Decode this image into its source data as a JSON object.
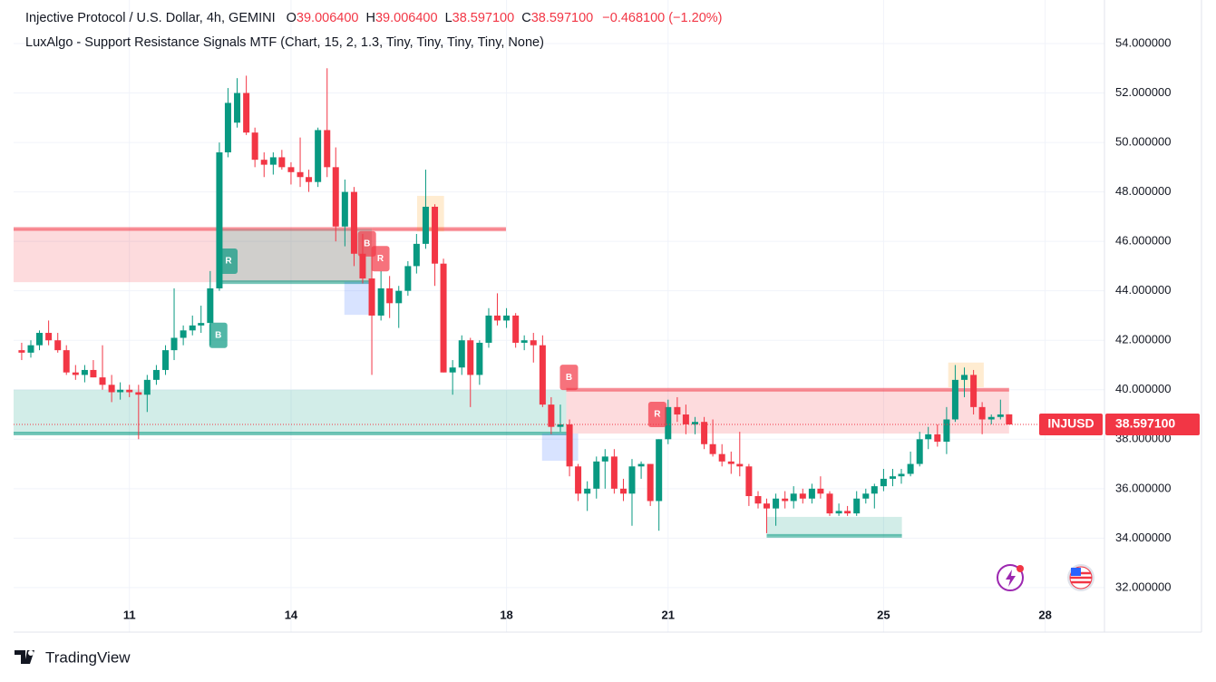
{
  "chart_data": {
    "type": "candlestick",
    "title": "Injective Protocol / U.S. Dollar, 4h, GEMINI",
    "ohlc_legend": [
      {
        "label": "O",
        "value": "39.006400"
      },
      {
        "label": "H",
        "value": "39.006400"
      },
      {
        "label": "L",
        "value": "38.597100"
      },
      {
        "label": "C",
        "value": "38.597100"
      }
    ],
    "change": "−0.468100 (−1.20%)",
    "indicator": "LuxAlgo - Support Resistance Signals MTF (Chart, 15, 2, 1.3, Tiny, Tiny, Tiny, Tiny, None)",
    "symbol": "INJUSD",
    "last_price": {
      "value": 38.5971,
      "label": "38.597100"
    },
    "up_color": "#089981",
    "down_color": "#f23645",
    "grid": true,
    "xlim": [
      8.85,
      29.05
    ],
    "xticks": [
      11,
      14,
      18,
      21,
      25,
      28
    ],
    "ylim": [
      30.2,
      55.76
    ],
    "yticks": [
      {
        "value": 32,
        "label": "32.000000"
      },
      {
        "value": 34,
        "label": "34.000000"
      },
      {
        "value": 36,
        "label": "36.000000"
      },
      {
        "value": 38,
        "label": "38.000000"
      },
      {
        "value": 40,
        "label": "40.000000"
      },
      {
        "value": 42,
        "label": "42.000000"
      },
      {
        "value": 44,
        "label": "44.000000"
      },
      {
        "value": 46,
        "label": "46.000000"
      },
      {
        "value": 48,
        "label": "48.000000"
      },
      {
        "value": 50,
        "label": "50.000000"
      },
      {
        "value": 52,
        "label": "52.000000"
      },
      {
        "value": 54,
        "label": "54.000000"
      }
    ],
    "x": [
      9,
      9.17,
      9.33,
      9.5,
      9.67,
      9.83,
      10,
      10.17,
      10.33,
      10.5,
      10.67,
      10.83,
      11,
      11.17,
      11.33,
      11.5,
      11.67,
      11.83,
      12,
      12.17,
      12.33,
      12.5,
      12.67,
      12.83,
      13,
      13.17,
      13.33,
      13.5,
      13.67,
      13.83,
      14,
      14.17,
      14.33,
      14.5,
      14.67,
      14.83,
      15,
      15.17,
      15.33,
      15.5,
      15.67,
      15.83,
      16,
      16.17,
      16.33,
      16.5,
      16.67,
      16.83,
      17,
      17.17,
      17.33,
      17.5,
      17.67,
      17.83,
      18,
      18.17,
      18.33,
      18.5,
      18.67,
      18.83,
      19,
      19.17,
      19.33,
      19.5,
      19.67,
      19.83,
      20,
      20.17,
      20.33,
      20.5,
      20.67,
      20.83,
      21,
      21.17,
      21.33,
      21.5,
      21.67,
      21.83,
      22,
      22.17,
      22.33,
      22.5,
      22.67,
      22.83,
      23,
      23.17,
      23.33,
      23.5,
      23.67,
      23.83,
      24,
      24.17,
      24.33,
      24.5,
      24.67,
      24.83,
      25,
      25.17,
      25.33,
      25.5,
      25.67,
      25.83,
      26,
      26.17,
      26.33,
      26.5,
      26.67,
      26.83,
      27,
      27.17,
      27.33
    ],
    "open": [
      41.6,
      41.5,
      41.8,
      42.3,
      42.0,
      41.6,
      40.7,
      40.6,
      40.8,
      40.5,
      40.2,
      39.9,
      40.0,
      39.9,
      39.8,
      40.4,
      40.8,
      41.6,
      42.1,
      42.4,
      42.6,
      42.7,
      44.1,
      49.6,
      50.8,
      52.0,
      50.4,
      49.3,
      49.1,
      49.4,
      49.0,
      48.8,
      48.6,
      48.4,
      50.5,
      49.0,
      46.6,
      48.0,
      45.5,
      44.5,
      43.0,
      44.1,
      43.5,
      44.0,
      45.0,
      45.9,
      47.4,
      45.1,
      40.7,
      40.9,
      42.0,
      40.6,
      41.9,
      43.0,
      42.8,
      43.0,
      41.9,
      42.0,
      41.8,
      39.4,
      38.5,
      38.6,
      36.9,
      35.8,
      36.0,
      37.1,
      37.3,
      36.0,
      35.8,
      36.9,
      37.0,
      35.5,
      38.0,
      39.3,
      39.0,
      38.6,
      38.7,
      37.8,
      37.4,
      37.1,
      37.0,
      36.9,
      35.7,
      35.4,
      35.2,
      35.6,
      35.5,
      35.8,
      35.6,
      36.0,
      35.8,
      35.0,
      35.1,
      35.0,
      35.6,
      35.8,
      36.1,
      36.4,
      36.5,
      36.6,
      37.0,
      38.0,
      38.2,
      37.9,
      38.8,
      40.4,
      40.6,
      39.3,
      38.8,
      38.9,
      39.0064
    ],
    "high": [
      41.9,
      42.0,
      42.4,
      42.8,
      42.3,
      41.8,
      41.0,
      41.0,
      41.2,
      41.8,
      40.6,
      40.3,
      40.2,
      40.2,
      40.6,
      41.0,
      41.8,
      44.1,
      42.6,
      43.0,
      43.4,
      44.8,
      50.0,
      52.2,
      52.6,
      52.7,
      50.6,
      49.6,
      49.6,
      49.7,
      49.2,
      50.2,
      48.9,
      50.6,
      53.0,
      49.8,
      48.5,
      48.2,
      46.3,
      45.4,
      44.8,
      44.6,
      44.2,
      45.2,
      46.3,
      48.9,
      47.5,
      45.3,
      41.2,
      42.2,
      42.1,
      42.0,
      43.3,
      43.9,
      43.3,
      43.1,
      42.2,
      42.3,
      42.2,
      39.7,
      39.4,
      38.8,
      37.0,
      36.3,
      37.3,
      37.6,
      37.6,
      36.4,
      37.2,
      37.1,
      37.0,
      38.0,
      39.6,
      39.7,
      39.4,
      38.9,
      38.9,
      38.8,
      37.8,
      37.5,
      38.3,
      37.0,
      35.9,
      35.6,
      35.8,
      35.9,
      36.1,
      36.0,
      36.2,
      36.5,
      35.9,
      35.4,
      35.3,
      35.9,
      36.0,
      36.2,
      36.8,
      36.8,
      36.8,
      37.5,
      38.3,
      38.5,
      38.6,
      39.3,
      41.0,
      40.9,
      40.8,
      39.5,
      39.0,
      39.6,
      39.0064
    ],
    "low": [
      41.2,
      41.3,
      41.6,
      41.8,
      41.5,
      40.6,
      40.4,
      40.3,
      40.5,
      40.0,
      39.5,
      39.6,
      39.7,
      38.0,
      39.1,
      40.2,
      40.6,
      41.2,
      41.8,
      42.2,
      42.3,
      41.8,
      44.0,
      49.4,
      50.6,
      50.3,
      49.0,
      48.6,
      48.7,
      48.9,
      48.3,
      48.2,
      48.0,
      48.2,
      48.6,
      46.0,
      45.8,
      45.0,
      44.3,
      40.6,
      42.8,
      42.9,
      42.5,
      43.8,
      44.7,
      45.7,
      44.2,
      40.7,
      39.8,
      40.6,
      39.3,
      40.2,
      41.7,
      42.6,
      42.5,
      41.7,
      41.6,
      41.1,
      39.3,
      38.2,
      38.3,
      36.5,
      35.5,
      35.1,
      35.6,
      36.0,
      35.8,
      35.5,
      34.5,
      36.4,
      35.3,
      34.3,
      37.8,
      38.7,
      38.2,
      38.2,
      37.6,
      37.3,
      36.9,
      36.6,
      36.5,
      35.3,
      35.2,
      34.2,
      34.5,
      35.2,
      35.2,
      35.4,
      35.4,
      35.6,
      34.9,
      34.9,
      34.9,
      34.9,
      35.4,
      35.2,
      35.9,
      36.1,
      36.2,
      36.5,
      36.9,
      37.6,
      37.7,
      37.4,
      38.7,
      39.7,
      39.0,
      38.2,
      38.6,
      38.8,
      38.5971
    ],
    "close": [
      41.5,
      41.8,
      42.3,
      42.0,
      41.6,
      40.7,
      40.6,
      40.8,
      40.5,
      40.2,
      39.9,
      40.0,
      39.9,
      39.8,
      40.4,
      40.8,
      41.6,
      42.1,
      42.4,
      42.6,
      42.7,
      44.1,
      49.6,
      51.6,
      52.0,
      50.4,
      49.3,
      49.1,
      49.4,
      49.0,
      48.8,
      48.6,
      48.4,
      50.5,
      49.0,
      46.6,
      48.0,
      45.5,
      44.5,
      43.0,
      44.1,
      43.5,
      44.0,
      45.0,
      45.9,
      47.4,
      45.1,
      40.7,
      40.9,
      42.0,
      40.6,
      41.9,
      43.0,
      42.8,
      43.0,
      41.9,
      42.0,
      41.8,
      39.4,
      38.5,
      38.6,
      36.9,
      35.8,
      36.0,
      37.1,
      37.3,
      36.0,
      35.8,
      36.9,
      37.0,
      35.5,
      38.0,
      39.3,
      39.0,
      38.6,
      38.7,
      37.8,
      37.4,
      37.1,
      37.0,
      36.9,
      35.7,
      35.4,
      35.2,
      35.6,
      35.5,
      35.8,
      35.6,
      36.0,
      35.8,
      35.0,
      35.1,
      35.0,
      35.6,
      35.8,
      36.1,
      36.4,
      36.5,
      36.6,
      37.0,
      38.0,
      38.2,
      37.9,
      38.8,
      40.4,
      40.6,
      39.3,
      38.8,
      38.9,
      39.0,
      38.5971
    ],
    "zones": [
      {
        "x": [
          8.85,
          15.5
        ],
        "y": [
          44.35,
          46.5
        ],
        "color": "#f23645",
        "line": "top"
      },
      {
        "x": [
          12.63,
          15.5
        ],
        "y": [
          44.35,
          46.5
        ],
        "color": "#089981",
        "line": "bottom"
      },
      {
        "x": [
          15.5,
          17.99
        ],
        "y": [
          46.4,
          46.5
        ],
        "color": "#f23645",
        "line": "top"
      },
      {
        "x": [
          8.85,
          19.11
        ],
        "y": [
          38.23,
          40.0
        ],
        "color": "#089981",
        "line": "bottom"
      },
      {
        "x": [
          19.11,
          27.33
        ],
        "y": [
          38.23,
          40.0
        ],
        "color": "#f23645",
        "line": "top"
      },
      {
        "x": [
          22.83,
          25.34
        ],
        "y": [
          34.09,
          34.86
        ],
        "color": "#089981",
        "line": "bottom"
      },
      {
        "x": [
          16.34,
          16.84
        ],
        "y": [
          46.4,
          47.84
        ],
        "color": "#ff9800",
        "line": "none"
      },
      {
        "x": [
          26.2,
          26.86
        ],
        "y": [
          40.1,
          41.1
        ],
        "color": "#ff9800",
        "line": "none"
      },
      {
        "x": [
          14.99,
          15.5
        ],
        "y": [
          43.03,
          44.36
        ],
        "color": "#2962ff",
        "line": "none"
      },
      {
        "x": [
          18.66,
          19.33
        ],
        "y": [
          37.13,
          38.23
        ],
        "color": "#2962ff",
        "line": "none"
      }
    ],
    "signals": [
      {
        "x": 12.84,
        "y": 45.2,
        "label": "R",
        "color": "#089981"
      },
      {
        "x": 12.65,
        "y": 42.2,
        "label": "B",
        "color": "#089981"
      },
      {
        "x": 15.41,
        "y": 45.9,
        "label": "B",
        "color": "#f23645"
      },
      {
        "x": 15.66,
        "y": 45.3,
        "label": "R",
        "color": "#f23645"
      },
      {
        "x": 19.16,
        "y": 40.5,
        "label": "B",
        "color": "#f23645"
      },
      {
        "x": 20.8,
        "y": 39.0,
        "label": "R",
        "color": "#f23645"
      }
    ]
  },
  "footer": {
    "brand": "TradingView"
  }
}
